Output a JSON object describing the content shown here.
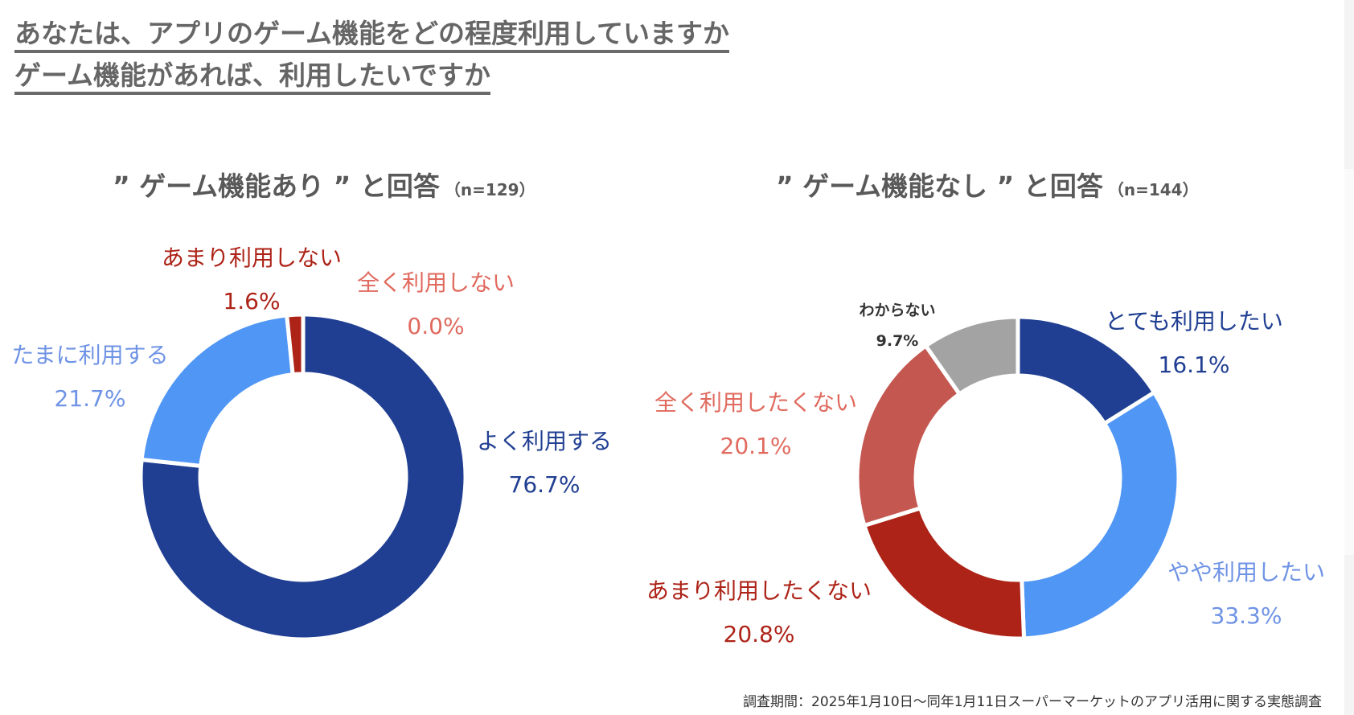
{
  "header": {
    "title_line1": "あなたは、アプリのゲーム機能をどの程度利用していますか",
    "title_line2": "ゲーム機能があれば、利用したいですか"
  },
  "footnote": "調査期間：2025年1月10日〜同年1月11日スーパーマーケットのアプリ活用に関する実態調査",
  "chart_data": [
    {
      "type": "pie",
      "variant": "donut",
      "title": "” ゲーム機能あり ” と回答",
      "n_label": "（n=129）",
      "start": "12 o'clock, clockwise",
      "slices": [
        {
          "label": "よく利用する",
          "value": 76.7,
          "value_label": "76.7%",
          "color": "#203F92",
          "label_color": "#203F92"
        },
        {
          "label": "全く利用しない",
          "value": 0.0,
          "value_label": "0.0%",
          "color": "#C45850",
          "label_color": "#E06A5E"
        },
        {
          "label": "たまに利用する",
          "value": 21.7,
          "value_label": "21.7%",
          "color": "#5096F5",
          "label_color": "#6F93E5"
        },
        {
          "label": "あまり利用しない",
          "value": 1.6,
          "value_label": "1.6%",
          "color": "#AD2317",
          "label_color": "#AD2317"
        }
      ]
    },
    {
      "type": "pie",
      "variant": "donut",
      "title": "” ゲーム機能なし ” と回答",
      "n_label": "（n=144）",
      "start": "12 o'clock, clockwise",
      "slices": [
        {
          "label": "とても利用したい",
          "value": 16.1,
          "value_label": "16.1%",
          "color": "#203F92",
          "label_color": "#203F92"
        },
        {
          "label": "やや利用したい",
          "value": 33.3,
          "value_label": "33.3%",
          "color": "#5096F5",
          "label_color": "#6F93E5"
        },
        {
          "label": "あまり利用したくない",
          "value": 20.8,
          "value_label": "20.8%",
          "color": "#AD2317",
          "label_color": "#AD2317"
        },
        {
          "label": "全く利用したくない",
          "value": 20.1,
          "value_label": "20.1%",
          "color": "#C45850",
          "label_color": "#E06A5E"
        },
        {
          "label": "わからない",
          "value": 9.7,
          "value_label": "9.7%",
          "color": "#A3A3A3",
          "label_color": "#333333"
        }
      ]
    }
  ]
}
